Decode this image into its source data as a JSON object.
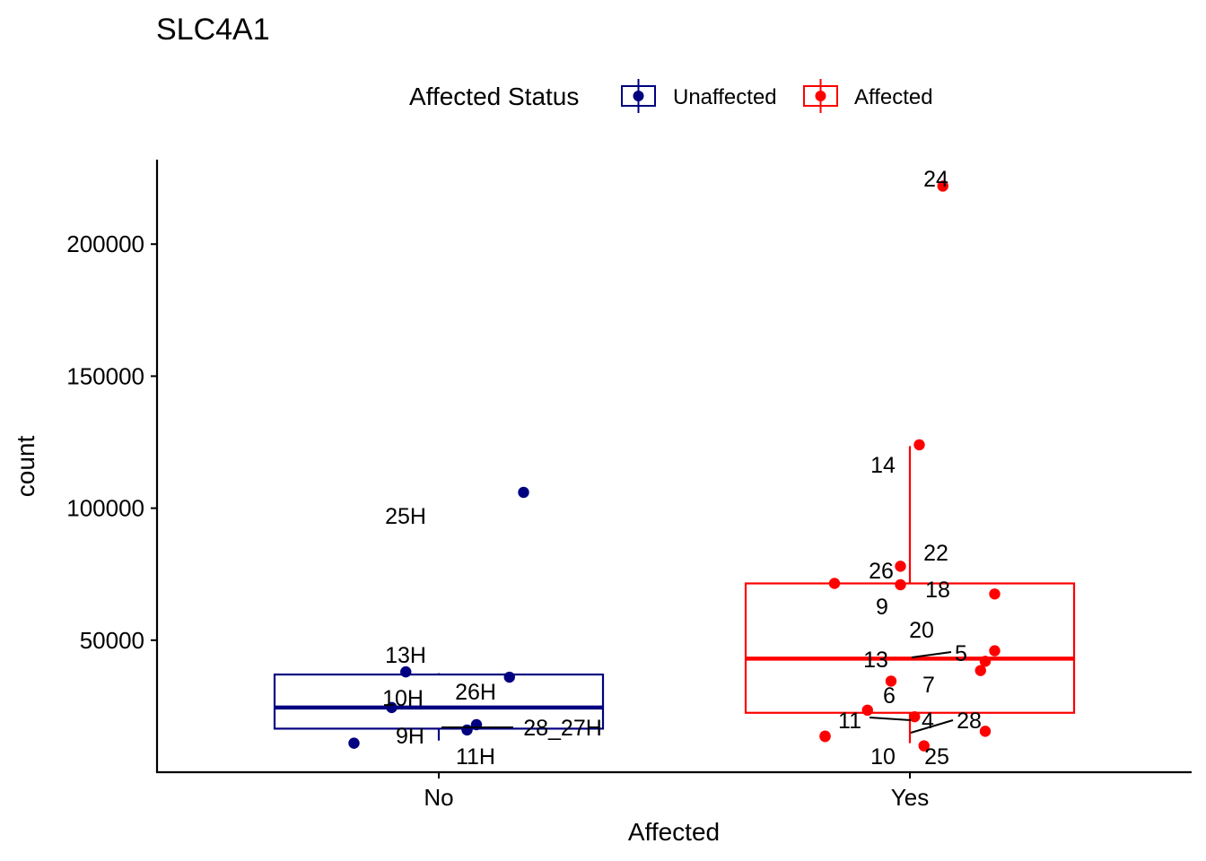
{
  "chart_data": {
    "type": "boxplot",
    "title": "SLC4A1",
    "xlabel": "Affected",
    "ylabel": "count",
    "categories": [
      "No",
      "Yes"
    ],
    "ylim": [
      0,
      232000
    ],
    "yticks": [
      50000,
      100000,
      150000,
      200000
    ],
    "ytick_labels": [
      "50000",
      "100000",
      "150000",
      "200000"
    ],
    "grid": false,
    "legend": {
      "title": "Affected Status",
      "position": "top",
      "entries": [
        {
          "label": "Unaffected",
          "color": "#000080"
        },
        {
          "label": "Affected",
          "color": "#ff0000"
        }
      ]
    },
    "series": [
      {
        "name": "Unaffected",
        "category": "No",
        "color": "#000080",
        "box": {
          "lower_whisker": 12000,
          "q1": 16500,
          "median": 24500,
          "q3": 37000,
          "upper_whisker": 37500
        },
        "points": [
          {
            "label": "25H",
            "value": 106000,
            "jitter": 0.18
          },
          {
            "label": "13H",
            "value": 38000,
            "jitter": -0.07
          },
          {
            "label": "26H",
            "value": 36000,
            "jitter": 0.15
          },
          {
            "label": "10H",
            "value": 24500,
            "jitter": -0.1
          },
          {
            "label": "28_27H",
            "value": 18000,
            "jitter": 0.08
          },
          {
            "label": "11H",
            "value": 16000,
            "jitter": 0.06
          },
          {
            "label": "9H",
            "value": 11000,
            "jitter": -0.18
          }
        ]
      },
      {
        "name": "Affected",
        "category": "Yes",
        "color": "#ff0000",
        "box": {
          "lower_whisker": 11000,
          "q1": 22500,
          "median": 43000,
          "q3": 71500,
          "upper_whisker": 123500
        },
        "points": [
          {
            "label": "24",
            "value": 222000,
            "jitter": 0.07
          },
          {
            "label": "14",
            "value": 124000,
            "jitter": 0.02
          },
          {
            "label": "26",
            "value": 78000,
            "jitter": -0.02
          },
          {
            "label": "22",
            "value": 71500,
            "jitter": -0.16
          },
          {
            "label": "9",
            "value": 71000,
            "jitter": -0.02
          },
          {
            "label": "18",
            "value": 67500,
            "jitter": 0.18
          },
          {
            "label": "5",
            "value": 46000,
            "jitter": 0.18
          },
          {
            "label": "20",
            "value": 42000,
            "jitter": 0.16
          },
          {
            "label": "7",
            "value": 38500,
            "jitter": 0.15
          },
          {
            "label": "13",
            "value": 34500,
            "jitter": -0.04
          },
          {
            "label": "6",
            "value": 23500,
            "jitter": -0.09
          },
          {
            "label": "4",
            "value": 21000,
            "jitter": 0.01
          },
          {
            "label": "28",
            "value": 15500,
            "jitter": 0.16
          },
          {
            "label": "11",
            "value": 13500,
            "jitter": -0.18
          },
          {
            "label": "25",
            "value": 10000,
            "jitter": 0.03
          },
          {
            "label": "10",
            "value": 13700,
            "jitter": -0.18
          }
        ]
      }
    ]
  }
}
